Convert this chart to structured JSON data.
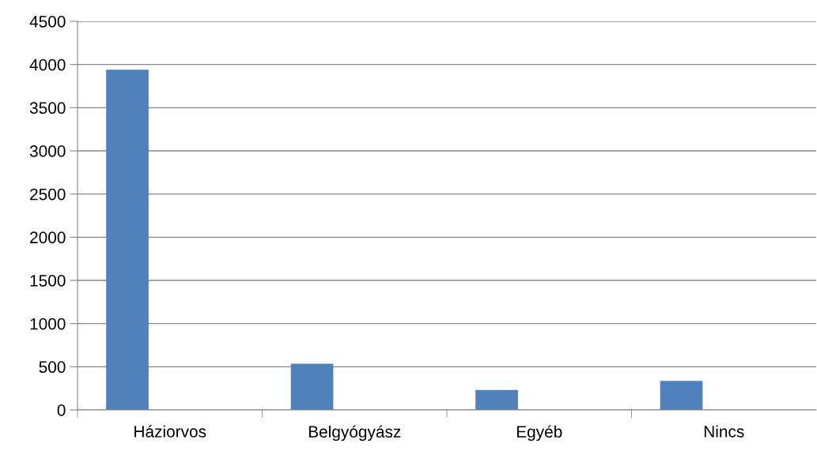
{
  "chart_data": {
    "type": "bar",
    "categories": [
      "Háziorvos",
      "Belgyógyász",
      "Egyéb",
      "Nincs"
    ],
    "values": [
      3940,
      535,
      230,
      335
    ],
    "color": "#4f81bd",
    "ylim": [
      0,
      4500
    ],
    "yticks": [
      0,
      500,
      1000,
      1500,
      2000,
      2500,
      3000,
      3500,
      4000,
      4500
    ],
    "grid": "y",
    "legend": false
  }
}
